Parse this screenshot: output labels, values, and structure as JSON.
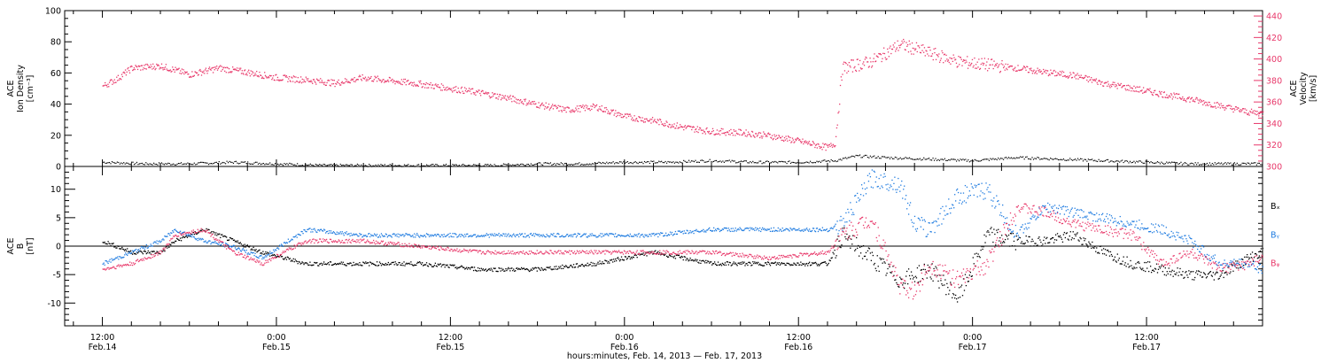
{
  "chart_data": [
    {
      "type": "scatter",
      "panel": "top",
      "ylabel_left": [
        "ACE",
        "Ion Density",
        "[cm⁻³]"
      ],
      "ylabel_right": [
        "ACE",
        "Velocity",
        "[km/s]"
      ],
      "ylim_left": [
        0,
        100
      ],
      "yticks_left": [
        0,
        20,
        40,
        60,
        80,
        100
      ],
      "ylim_right": [
        300,
        445
      ],
      "yticks_right": [
        300,
        320,
        340,
        360,
        380,
        400,
        420,
        440
      ],
      "series": [
        {
          "name": "",
          "axis": "left",
          "color": "#000000",
          "x": [
            0,
            3,
            6,
            9,
            12,
            15,
            18,
            21,
            24,
            27,
            30,
            33,
            36,
            39,
            42,
            45,
            48,
            50.5,
            52,
            54,
            57,
            60,
            63,
            66,
            69,
            72,
            75,
            78,
            80
          ],
          "y": [
            3,
            2,
            2,
            3,
            2,
            1,
            1,
            1,
            1,
            1,
            2,
            2,
            3,
            3,
            4,
            3,
            3,
            4,
            7,
            6,
            5,
            4,
            6,
            5,
            4,
            3,
            2,
            2,
            2
          ]
        },
        {
          "name": "",
          "axis": "right",
          "color": "#e8386a",
          "x": [
            0,
            1,
            2,
            4,
            6,
            8,
            10,
            12,
            14,
            16,
            18,
            20,
            22,
            24,
            26,
            28,
            30,
            32,
            34,
            36,
            38,
            40,
            42,
            44,
            46,
            48,
            50,
            50.5,
            51,
            53,
            55,
            57,
            59,
            61,
            63,
            65,
            67,
            69,
            71,
            73,
            75,
            77,
            79,
            80
          ],
          "y": [
            375,
            382,
            392,
            394,
            386,
            392,
            388,
            383,
            381,
            378,
            383,
            380,
            377,
            373,
            369,
            364,
            358,
            353,
            356,
            347,
            343,
            337,
            333,
            332,
            329,
            324,
            318,
            322,
            392,
            398,
            414,
            406,
            398,
            395,
            392,
            388,
            385,
            378,
            373,
            368,
            363,
            357,
            351,
            350
          ]
        }
      ]
    },
    {
      "type": "scatter",
      "panel": "bottom",
      "ylabel_left": [
        "ACE",
        "B",
        "[nT]"
      ],
      "ylim": [
        -14,
        14
      ],
      "yticks": [
        -10,
        -5,
        0,
        5,
        10
      ],
      "zero_line": true,
      "legend": [
        "Bₓ",
        "Bᵧ",
        "Bᵩ"
      ],
      "legend_colors": [
        "#000000",
        "#1e7be0",
        "#e8386a"
      ],
      "series": [
        {
          "name": "Bₓ",
          "color": "#000000",
          "x": [
            0,
            2,
            4,
            5,
            7,
            9,
            11,
            14,
            18,
            22,
            26,
            30,
            34,
            38,
            42,
            46,
            50,
            51,
            53,
            55,
            57,
            59,
            61,
            63,
            65,
            67,
            69,
            71,
            73,
            75,
            77,
            79,
            80
          ],
          "y": [
            1,
            -1,
            -1,
            1,
            3,
            1,
            -1,
            -3,
            -3,
            -3,
            -4,
            -4,
            -3,
            -1,
            -3,
            -3,
            -3,
            2,
            -2,
            -6,
            -4,
            -9,
            2,
            1,
            1,
            2,
            -1,
            -3,
            -4,
            -5,
            -5,
            -2,
            -1
          ]
        },
        {
          "name": "Bᵧ",
          "color": "#1e7be0",
          "x": [
            0,
            2,
            4,
            5,
            7,
            9,
            11,
            14,
            18,
            22,
            26,
            30,
            34,
            38,
            42,
            46,
            50,
            51,
            53,
            55,
            56,
            57,
            59,
            61,
            63,
            65,
            67,
            69,
            71,
            73,
            75,
            77,
            79,
            80
          ],
          "y": [
            -3,
            -1,
            1,
            3,
            1,
            0,
            -2,
            3,
            2,
            2,
            2,
            2,
            2,
            2,
            3,
            3,
            3,
            4,
            12,
            11,
            4,
            3,
            9,
            10,
            2,
            7,
            6,
            5,
            4,
            3,
            1,
            -3,
            -3,
            -4
          ]
        },
        {
          "name": "Bᵩ",
          "color": "#e8386a",
          "x": [
            0,
            2,
            4,
            5,
            7,
            9,
            11,
            14,
            18,
            22,
            26,
            30,
            34,
            38,
            42,
            46,
            50,
            51,
            53,
            55,
            56,
            57,
            59,
            61,
            63,
            65,
            67,
            69,
            71,
            73,
            75,
            77,
            79,
            80
          ],
          "y": [
            -4,
            -3,
            -1,
            2,
            3,
            -1,
            -3,
            1,
            1,
            0,
            -1,
            -1,
            -1,
            -1,
            -1,
            -2,
            -1,
            2,
            5,
            -7,
            -8,
            -3,
            -6,
            -3,
            7,
            6,
            4,
            3,
            2,
            -3,
            -1,
            -4,
            -3,
            -2
          ]
        }
      ]
    },
    {
      "type": "time_axis",
      "x_unit": "hours since first tick",
      "ticks": [
        {
          "x": 0,
          "time": "12:00",
          "date": "Feb.14"
        },
        {
          "x": 12,
          "time": "0:00",
          "date": "Feb.15"
        },
        {
          "x": 24,
          "time": "12:00",
          "date": "Feb.15"
        },
        {
          "x": 36,
          "time": "0:00",
          "date": "Feb.16"
        },
        {
          "x": 48,
          "time": "12:00",
          "date": "Feb.16"
        },
        {
          "x": 60,
          "time": "0:00",
          "date": "Feb.17"
        },
        {
          "x": 72,
          "time": "12:00",
          "date": "Feb.17"
        }
      ],
      "xlim": [
        -2.6,
        80
      ],
      "xlabel": "hours:minutes, Feb. 14, 2013 — Feb. 17, 2013"
    }
  ]
}
